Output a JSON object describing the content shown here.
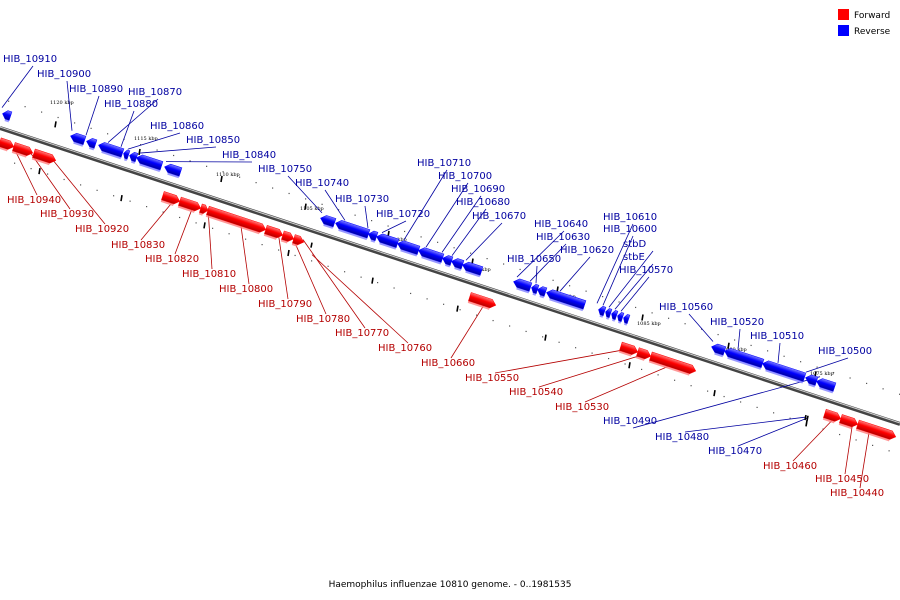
{
  "caption": "Haemophilus influenzae 10810 genome. - 0..1981535",
  "legend": [
    {
      "label": "Forward",
      "color": "#ff0000"
    },
    {
      "label": "Reverse",
      "color": "#0000ff"
    }
  ],
  "colors": {
    "forward": "#ff0000",
    "forward_dark": "#b40000",
    "forward_light": "#ff8080",
    "reverse": "#0000ff",
    "reverse_dark": "#0000a0",
    "reverse_light": "#7f7fff",
    "forward_text": "#b40000",
    "reverse_text": "#0000a0"
  },
  "ruler": [
    {
      "label": "1120 kbp"
    },
    {
      "label": "1115 kbp"
    },
    {
      "label": "1110 kbp"
    },
    {
      "label": "1105 kbp"
    },
    {
      "label": "1100 kbp"
    },
    {
      "label": "1095 kbp"
    },
    {
      "label": "1090 kbp"
    },
    {
      "label": "1085 kbp"
    },
    {
      "label": "1080 kbp"
    },
    {
      "label": "1075 kbp"
    }
  ],
  "genes": [
    {
      "name": "HIB_10910",
      "strand": "reverse"
    },
    {
      "name": "HIB_10900",
      "strand": "reverse"
    },
    {
      "name": "HIB_10890",
      "strand": "reverse"
    },
    {
      "name": "HIB_10870",
      "strand": "reverse"
    },
    {
      "name": "HIB_10880",
      "strand": "reverse"
    },
    {
      "name": "HIB_10860",
      "strand": "reverse"
    },
    {
      "name": "HIB_10850",
      "strand": "reverse"
    },
    {
      "name": "HIB_10840",
      "strand": "reverse"
    },
    {
      "name": "HIB_10750",
      "strand": "reverse"
    },
    {
      "name": "HIB_10740",
      "strand": "reverse"
    },
    {
      "name": "HIB_10730",
      "strand": "reverse"
    },
    {
      "name": "HIB_10720",
      "strand": "reverse"
    },
    {
      "name": "HIB_10710",
      "strand": "reverse"
    },
    {
      "name": "HIB_10700",
      "strand": "reverse"
    },
    {
      "name": "HIB_10690",
      "strand": "reverse"
    },
    {
      "name": "HIB_10680",
      "strand": "reverse"
    },
    {
      "name": "HIB_10670",
      "strand": "reverse"
    },
    {
      "name": "HIB_10640",
      "strand": "reverse"
    },
    {
      "name": "HIB_10630",
      "strand": "reverse"
    },
    {
      "name": "HIB_10650",
      "strand": "reverse"
    },
    {
      "name": "HIB_10620",
      "strand": "reverse"
    },
    {
      "name": "HIB_10610",
      "strand": "reverse"
    },
    {
      "name": "HIB_10600",
      "strand": "reverse"
    },
    {
      "name": "stbD",
      "strand": "reverse"
    },
    {
      "name": "stbE",
      "strand": "reverse"
    },
    {
      "name": "HIB_10570",
      "strand": "reverse"
    },
    {
      "name": "HIB_10560",
      "strand": "reverse"
    },
    {
      "name": "HIB_10520",
      "strand": "reverse"
    },
    {
      "name": "HIB_10510",
      "strand": "reverse"
    },
    {
      "name": "HIB_10500",
      "strand": "reverse"
    },
    {
      "name": "HIB_10490",
      "strand": "reverse"
    },
    {
      "name": "HIB_10480",
      "strand": "reverse"
    },
    {
      "name": "HIB_10470",
      "strand": "reverse"
    },
    {
      "name": "HIB_10940",
      "strand": "forward"
    },
    {
      "name": "HIB_10930",
      "strand": "forward"
    },
    {
      "name": "HIB_10920",
      "strand": "forward"
    },
    {
      "name": "HIB_10830",
      "strand": "forward"
    },
    {
      "name": "HIB_10820",
      "strand": "forward"
    },
    {
      "name": "HIB_10810",
      "strand": "forward"
    },
    {
      "name": "HIB_10800",
      "strand": "forward"
    },
    {
      "name": "HIB_10790",
      "strand": "forward"
    },
    {
      "name": "HIB_10780",
      "strand": "forward"
    },
    {
      "name": "HIB_10770",
      "strand": "forward"
    },
    {
      "name": "HIB_10760",
      "strand": "forward"
    },
    {
      "name": "HIB_10660",
      "strand": "forward"
    },
    {
      "name": "HIB_10550",
      "strand": "forward"
    },
    {
      "name": "HIB_10540",
      "strand": "forward"
    },
    {
      "name": "HIB_10530",
      "strand": "forward"
    },
    {
      "name": "HIB_10460",
      "strand": "forward"
    },
    {
      "name": "HIB_10450",
      "strand": "forward"
    },
    {
      "name": "HIB_10440",
      "strand": "forward"
    }
  ]
}
